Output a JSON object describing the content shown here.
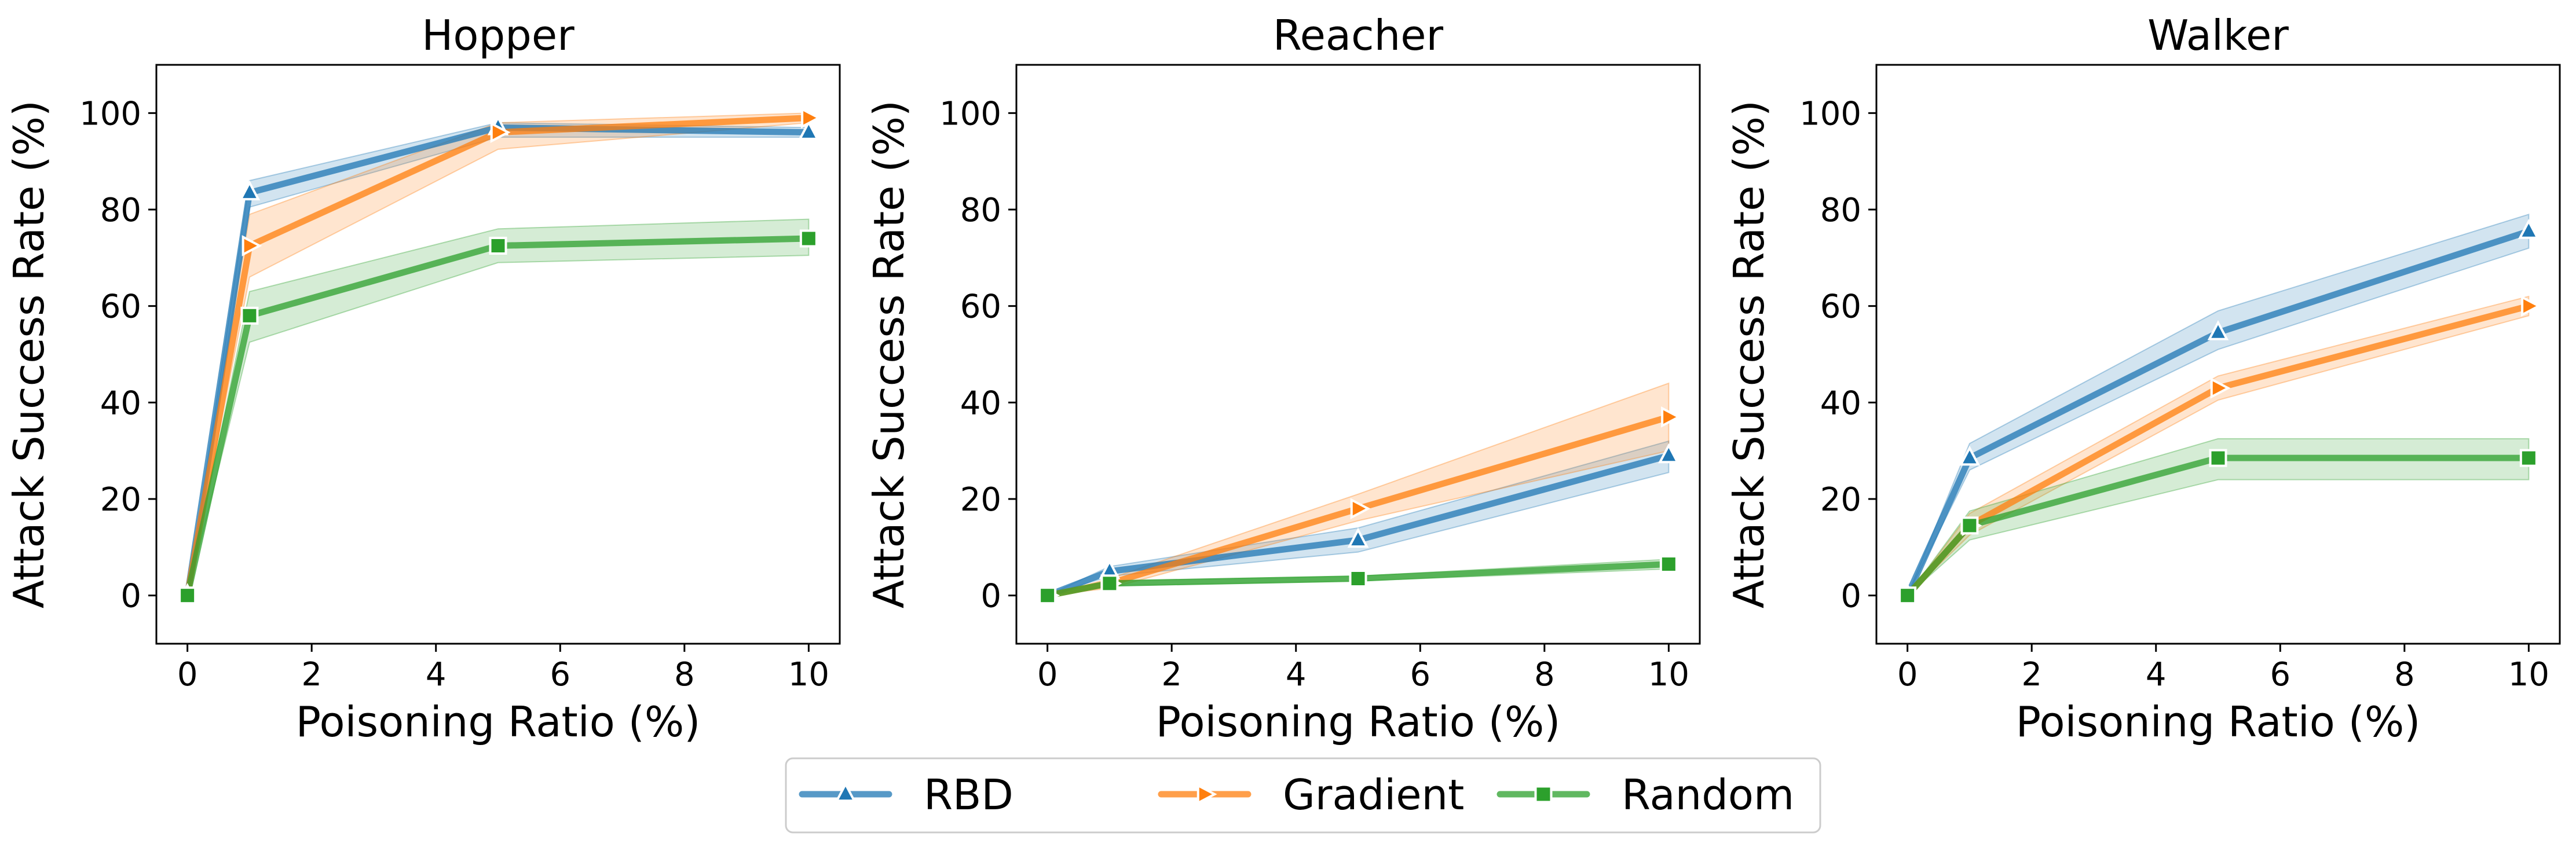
{
  "chart_data": [
    {
      "type": "line",
      "title": "Hopper",
      "xlabel": "Poisoning Ratio (%)",
      "ylabel": "Attack Success Rate (%)",
      "x": [
        0,
        1,
        5,
        10
      ],
      "xlim": [
        -0.5,
        10.5
      ],
      "ylim": [
        -10,
        110
      ],
      "xticks": [
        0,
        2,
        4,
        6,
        8,
        10
      ],
      "yticks": [
        0,
        20,
        40,
        60,
        80,
        100
      ],
      "series": [
        {
          "name": "RBD",
          "values": [
            0,
            83.5,
            97,
            96
          ],
          "band_low": [
            0,
            80.5,
            95,
            95
          ],
          "band_high": [
            0,
            86,
            98,
            97
          ]
        },
        {
          "name": "Gradient",
          "values": [
            0,
            72.5,
            96,
            99
          ],
          "band_low": [
            0,
            66,
            92.5,
            98
          ],
          "band_high": [
            0,
            79,
            98,
            100
          ]
        },
        {
          "name": "Random",
          "values": [
            0,
            58,
            72.5,
            74
          ],
          "band_low": [
            0,
            52.5,
            69,
            70.5
          ],
          "band_high": [
            0,
            63,
            76,
            78
          ]
        }
      ]
    },
    {
      "type": "line",
      "title": "Reacher",
      "xlabel": "Poisoning Ratio (%)",
      "ylabel": "Attack Success Rate (%)",
      "x": [
        0,
        1,
        5,
        10
      ],
      "xlim": [
        -0.5,
        10.5
      ],
      "ylim": [
        -10,
        110
      ],
      "xticks": [
        0,
        2,
        4,
        6,
        8,
        10
      ],
      "yticks": [
        0,
        20,
        40,
        60,
        80,
        100
      ],
      "series": [
        {
          "name": "RBD",
          "values": [
            0,
            5,
            11.5,
            29
          ],
          "band_low": [
            0,
            4,
            9,
            25.5
          ],
          "band_high": [
            0,
            6,
            14,
            32
          ]
        },
        {
          "name": "Gradient",
          "values": [
            0,
            2.5,
            18,
            37
          ],
          "band_low": [
            0,
            1.5,
            15.5,
            30
          ],
          "band_high": [
            0,
            3.5,
            21,
            44
          ]
        },
        {
          "name": "Random",
          "values": [
            0,
            2.5,
            3.5,
            6.5
          ],
          "band_low": [
            0,
            2,
            3,
            5.5
          ],
          "band_high": [
            0,
            3,
            4,
            7.5
          ]
        }
      ]
    },
    {
      "type": "line",
      "title": "Walker",
      "xlabel": "Poisoning Ratio (%)",
      "ylabel": "Attack Success Rate (%)",
      "x": [
        0,
        1,
        5,
        10
      ],
      "xlim": [
        -0.5,
        10.5
      ],
      "ylim": [
        -10,
        110
      ],
      "xticks": [
        0,
        2,
        4,
        6,
        8,
        10
      ],
      "yticks": [
        0,
        20,
        40,
        60,
        80,
        100
      ],
      "series": [
        {
          "name": "RBD",
          "values": [
            0,
            28.5,
            54.5,
            75.5
          ],
          "band_low": [
            0,
            26,
            51,
            72
          ],
          "band_high": [
            0,
            31.5,
            59,
            79
          ]
        },
        {
          "name": "Gradient",
          "values": [
            0,
            14.5,
            43,
            60
          ],
          "band_low": [
            0,
            12.5,
            40.5,
            58
          ],
          "band_high": [
            0,
            17,
            45.5,
            62
          ]
        },
        {
          "name": "Random",
          "values": [
            0,
            14.5,
            28.5,
            28.5
          ],
          "band_low": [
            0,
            11.5,
            24,
            24
          ],
          "band_high": [
            0,
            17.5,
            32.5,
            32.5
          ]
        }
      ]
    }
  ],
  "legend": {
    "placement": "bottom-center",
    "items": [
      {
        "name": "RBD",
        "marker": "triangle-up"
      },
      {
        "name": "Gradient",
        "marker": "triangle-right"
      },
      {
        "name": "Random",
        "marker": "square"
      }
    ]
  },
  "colors": {
    "RBD": "#1f77b4",
    "Gradient": "#ff7f0e",
    "Random": "#2ca02c"
  }
}
